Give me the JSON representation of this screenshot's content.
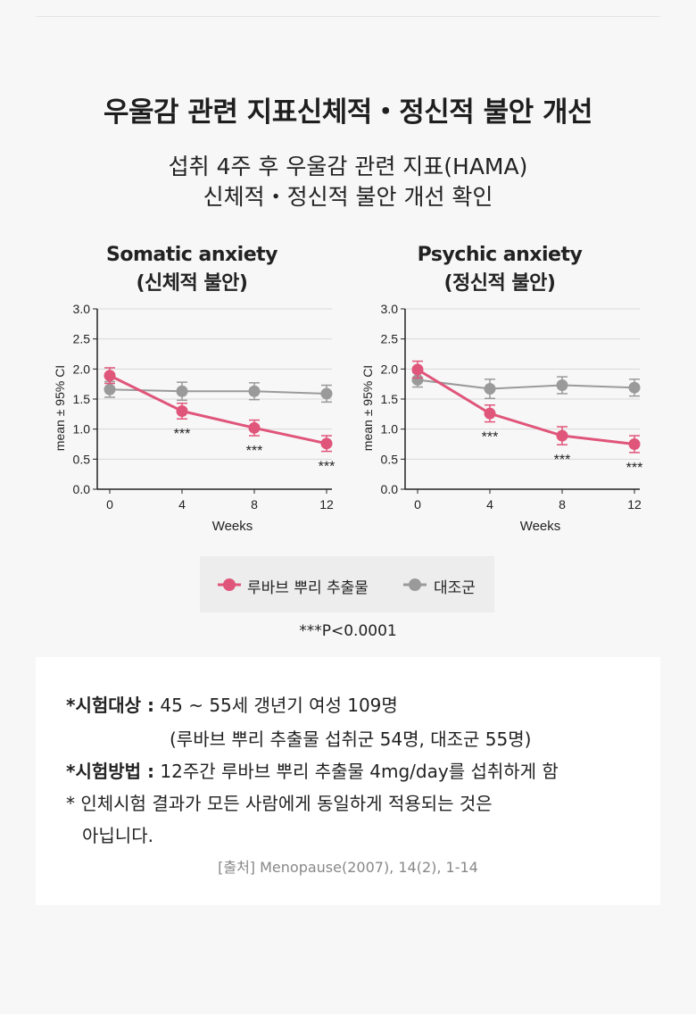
{
  "title": "우울감 관련 지표신체적・정신적 불안 개선",
  "subtitle_line1": "섭취 4주 후 우울감 관련 지표(HAMA)",
  "subtitle_line2": "신체적・정신적 불안 개선 확인",
  "colors": {
    "treatment": "#e0557a",
    "control": "#9a9a9a",
    "axis": "#222222",
    "grid": "#d8d8d8"
  },
  "chart_data": [
    {
      "type": "line",
      "title_en": "Somatic anxiety",
      "title_ko": "(신체적 불안)",
      "xlabel": "Weeks",
      "ylabel": "mean ± 95% CI",
      "x": [
        0,
        4,
        8,
        12
      ],
      "x_tick_labels": [
        "0",
        "4",
        "8",
        "12"
      ],
      "ylim": [
        0,
        3
      ],
      "y_tick_labels": [
        "0.0",
        "0.5",
        "1.0",
        "1.5",
        "2.0",
        "2.5",
        "3.0"
      ],
      "grid": true,
      "series": [
        {
          "name": "루바브 뿌리 추출물",
          "values": [
            1.89,
            1.3,
            1.02,
            0.76
          ],
          "ci": [
            0.13,
            0.13,
            0.13,
            0.13
          ],
          "annotations": [
            "",
            "***",
            "***",
            "***"
          ]
        },
        {
          "name": "대조군",
          "values": [
            1.66,
            1.63,
            1.63,
            1.59
          ],
          "ci": [
            0.13,
            0.15,
            0.14,
            0.14
          ]
        }
      ]
    },
    {
      "type": "line",
      "title_en": "Psychic anxiety",
      "title_ko": "(정신적 불안)",
      "xlabel": "Weeks",
      "ylabel": "mean ± 95% CI",
      "x": [
        0,
        4,
        8,
        12
      ],
      "x_tick_labels": [
        "0",
        "4",
        "8",
        "12"
      ],
      "ylim": [
        0,
        3
      ],
      "y_tick_labels": [
        "0.0",
        "0.5",
        "1.0",
        "1.5",
        "2.0",
        "2.5",
        "3.0"
      ],
      "grid": true,
      "series": [
        {
          "name": "루바브 뿌리 추출물",
          "values": [
            1.99,
            1.26,
            0.89,
            0.75
          ],
          "ci": [
            0.14,
            0.14,
            0.15,
            0.14
          ]
        },
        {
          "name": "대조군",
          "values": [
            1.82,
            1.67,
            1.73,
            1.69
          ],
          "ci": [
            0.12,
            0.16,
            0.14,
            0.14
          ]
        }
      ]
    }
  ],
  "legend": {
    "treatment": "루바브 뿌리 추출물",
    "control": "대조군"
  },
  "significance": "***P<0.0001",
  "info": {
    "subject_label": "*시험대상 :",
    "subject_value": "45 ~ 55세 갱년기 여성 109명",
    "subject_detail": "(루바브 뿌리 추출물 섭취군 54명, 대조군 55명)",
    "method_label": "*시험방법 :",
    "method_value": "12주간 루바브 뿌리 추출물 4mg/day를 섭취하게 함",
    "note_line1": "* 인체시험 결과가 모든 사람에게 동일하게 적용되는 것은",
    "note_line2": "아닙니다.",
    "source": "[출처] Menopause(2007), 14(2), 1-14"
  }
}
